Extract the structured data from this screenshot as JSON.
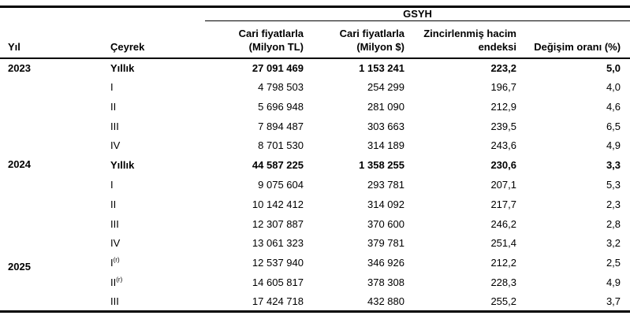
{
  "colors": {
    "text": "#000000",
    "background": "#ffffff",
    "border": "#000000"
  },
  "table": {
    "group_header": "GSYH",
    "columns": {
      "year": "Yıl",
      "quarter": "Çeyrek",
      "current_tl_line1": "Cari fiyatlarla",
      "current_tl_line2": "(Milyon TL)",
      "current_usd_line1": "Cari fiyatlarla",
      "current_usd_line2": "(Milyon $)",
      "volume_index_line1": "Zincirlenmiş hacim",
      "volume_index_line2": "endeksi",
      "change_rate": "Değişim oranı (%)"
    },
    "groups": [
      {
        "year": "2023",
        "rows": [
          {
            "quarter": "Yıllık",
            "sup": "",
            "bold": true,
            "values": [
              "27 091 469",
              "1 153 241",
              "223,2",
              "5,0"
            ]
          },
          {
            "quarter": "I",
            "sup": "",
            "bold": false,
            "values": [
              "4 798 503",
              "254 299",
              "196,7",
              "4,0"
            ]
          },
          {
            "quarter": "II",
            "sup": "",
            "bold": false,
            "values": [
              "5 696 948",
              "281 090",
              "212,9",
              "4,6"
            ]
          },
          {
            "quarter": "III",
            "sup": "",
            "bold": false,
            "values": [
              "7 894 487",
              "303 663",
              "239,5",
              "6,5"
            ]
          },
          {
            "quarter": "IV",
            "sup": "",
            "bold": false,
            "values": [
              "8 701 530",
              "314 189",
              "243,6",
              "4,9"
            ]
          }
        ]
      },
      {
        "year": "2024",
        "rows": [
          {
            "quarter": "Yıllık",
            "sup": "",
            "bold": true,
            "values": [
              "44 587 225",
              "1 358 255",
              "230,6",
              "3,3"
            ]
          },
          {
            "quarter": "I",
            "sup": "",
            "bold": false,
            "values": [
              "9 075 604",
              "293 781",
              "207,1",
              "5,3"
            ]
          },
          {
            "quarter": "II",
            "sup": "",
            "bold": false,
            "values": [
              "10 142 412",
              "314 092",
              "217,7",
              "2,3"
            ]
          },
          {
            "quarter": "III",
            "sup": "",
            "bold": false,
            "values": [
              "12 307 887",
              "370 600",
              "246,2",
              "2,8"
            ]
          },
          {
            "quarter": "IV",
            "sup": "",
            "bold": false,
            "values": [
              "13 061 323",
              "379 781",
              "251,4",
              "3,2"
            ]
          }
        ]
      },
      {
        "year": "2025",
        "rows": [
          {
            "quarter": "I",
            "sup": "(r)",
            "bold": false,
            "values": [
              "12 537 940",
              "346 926",
              "212,2",
              "2,5"
            ]
          },
          {
            "quarter": "II",
            "sup": "(r)",
            "bold": false,
            "values": [
              "14 605 817",
              "378 308",
              "228,3",
              "4,9"
            ]
          },
          {
            "quarter": "III",
            "sup": "",
            "bold": false,
            "values": [
              "17 424 718",
              "432 880",
              "255,2",
              "3,7"
            ]
          }
        ]
      }
    ]
  }
}
